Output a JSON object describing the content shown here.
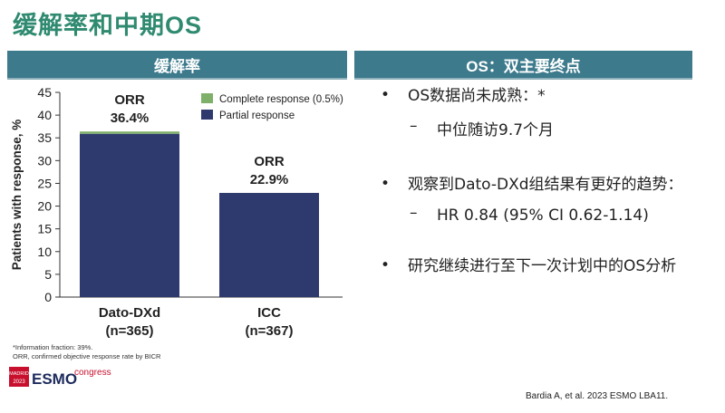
{
  "title": "缓解率和中期OS",
  "left_header": "缓解率",
  "right_header": "OS：双主要终点",
  "bullets": {
    "b1": "OS数据尚未成熟：*",
    "b1_sub": "中位随访9.7个月",
    "b2": "观察到Dato-DXd组结果有更好的趋势：",
    "b2_sub": "HR 0.84 (95% CI 0.62-1.14)",
    "b3": "研究继续进行至下一次计划中的OS分析"
  },
  "footnotes": {
    "f1": "*Information fraction: 39%.",
    "f2": "ORR, confirmed objective response rate by BICR"
  },
  "logo": {
    "city": "MADRID",
    "year": "2023",
    "name": "ESMO",
    "word": "congress"
  },
  "reference": "Bardia A, et al. 2023 ESMO LBA11.",
  "colors": {
    "title": "#2f8a70",
    "band": "#3c7a8c",
    "partial": "#2e3a6e",
    "complete": "#7fb069"
  },
  "chart_data": {
    "type": "bar",
    "stacked": true,
    "categories": [
      "Dato-DXd",
      "ICC"
    ],
    "category_n": [
      "(n=365)",
      "(n=367)"
    ],
    "series": [
      {
        "name": "Partial response",
        "values": [
          35.9,
          22.9
        ]
      },
      {
        "name": "Complete response (0.5%)",
        "values": [
          0.5,
          0
        ]
      }
    ],
    "bar_labels": [
      {
        "top": "ORR",
        "value": "36.4%"
      },
      {
        "top": "ORR",
        "value": "22.9%"
      }
    ],
    "ylabel": "Patients with response, %",
    "ylim": [
      0,
      45
    ],
    "yticks": [
      0,
      5,
      10,
      15,
      20,
      25,
      30,
      35,
      40,
      45
    ],
    "legend": "top-right"
  }
}
